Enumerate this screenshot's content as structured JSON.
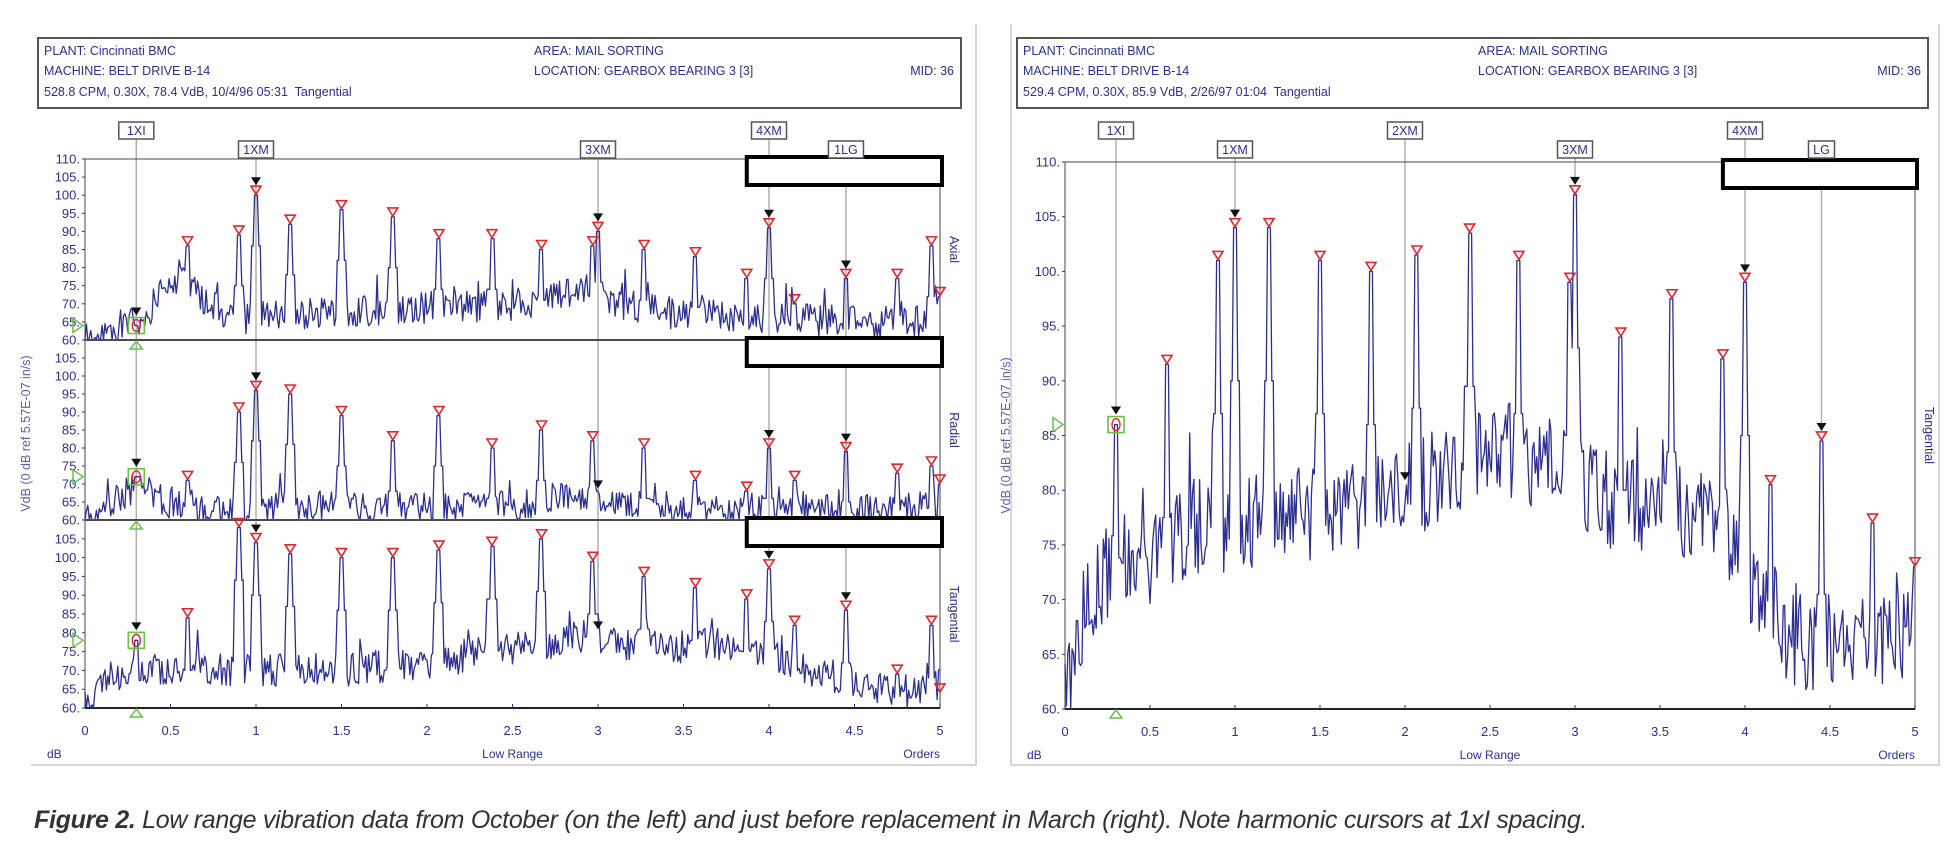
{
  "panels": [
    {
      "header": {
        "plant": "PLANT: Cincinnati BMC",
        "area": "AREA: MAIL SORTING",
        "machine": "MACHINE: BELT DRIVE B-14",
        "location": "LOCATION: GEARBOX BEARING 3 [3]",
        "mid": "MID: 36",
        "reading": "528.8 CPM, 0.30X, 78.4 VdB, 10/4/96 05:31  Tangential"
      }
    },
    {
      "header": {
        "plant": "PLANT: Cincinnati BMC",
        "area": "AREA: MAIL SORTING",
        "machine": "MACHINE: BELT DRIVE B-14",
        "location": "LOCATION: GEARBOX BEARING 3 [3]",
        "mid": "MID: 36",
        "reading": "529.4 CPM, 0.30X, 85.9 VdB, 2/26/97 01:04  Tangential"
      }
    }
  ],
  "caption": {
    "label": "Figure 2.",
    "text": " Low range vibration data from October (on the left) and just before replacement in March (right). Note harmonic cursors at 1xI spacing."
  },
  "colors": {
    "trace": "#2b2f8f",
    "peak_marker": "#e8232a",
    "cursor_marker": "#111111",
    "reference_marker": "#6cc04a",
    "cursor_line": "#b0b0b0"
  },
  "chart_data": [
    {
      "type": "line",
      "title": "",
      "xlabel": "Low Range",
      "ylabel": "VdB (0 dB ref 5.57E-07 in/s)",
      "y_unit": "dB",
      "x_unit": "Orders",
      "xlim": [
        0,
        5
      ],
      "x_ticks": [
        "0",
        "0.5",
        "1",
        "1.5",
        "2",
        "2.5",
        "3",
        "3.5",
        "4",
        "4.5",
        "5"
      ],
      "grid": false,
      "cursors": [
        {
          "label": "1XI",
          "x": 0.3,
          "row": 0
        },
        {
          "label": "1XM",
          "x": 1.0,
          "row": 1
        },
        {
          "label": "3XM",
          "x": 3.0,
          "row": 1
        },
        {
          "label": "4XM",
          "x": 4.0,
          "row": 0
        },
        {
          "label": "1LG",
          "x": 4.45,
          "row": 1
        }
      ],
      "series": [
        {
          "name": "Axial",
          "ylim": [
            60,
            110
          ],
          "y_ticks": [
            "110.",
            "105.",
            "100.",
            "95.",
            "90.",
            "85.",
            "80.",
            "75.",
            "70.",
            "65.",
            "60."
          ],
          "cursor_value": 64,
          "floor": [
            [
              0,
              60
            ],
            [
              0.1,
              60
            ],
            [
              0.2,
              64
            ],
            [
              0.35,
              66
            ],
            [
              0.45,
              74
            ],
            [
              0.55,
              78
            ],
            [
              0.7,
              70
            ],
            [
              0.9,
              66
            ],
            [
              1.2,
              67
            ],
            [
              1.6,
              68
            ],
            [
              2.0,
              69
            ],
            [
              2.4,
              69
            ],
            [
              2.7,
              71
            ],
            [
              2.9,
              75
            ],
            [
              3.1,
              70
            ],
            [
              3.5,
              67
            ],
            [
              4.0,
              66
            ],
            [
              4.5,
              65
            ],
            [
              4.9,
              65
            ],
            [
              5.0,
              68
            ]
          ],
          "peaks": [
            [
              0.6,
              86
            ],
            [
              0.9,
              89
            ],
            [
              1.0,
              100
            ],
            [
              1.2,
              92
            ],
            [
              1.5,
              96
            ],
            [
              1.8,
              94
            ],
            [
              2.07,
              88
            ],
            [
              2.38,
              88
            ],
            [
              2.67,
              85
            ],
            [
              2.97,
              86
            ],
            [
              3.0,
              90
            ],
            [
              3.27,
              85
            ],
            [
              3.57,
              83
            ],
            [
              3.87,
              77
            ],
            [
              4.0,
              91
            ],
            [
              4.15,
              70
            ],
            [
              4.45,
              77
            ],
            [
              4.75,
              77
            ],
            [
              4.95,
              86
            ],
            [
              5.0,
              72
            ]
          ]
        },
        {
          "name": "Radial",
          "ylim": [
            60,
            110
          ],
          "y_ticks": [
            "105.",
            "100.",
            "95.",
            "90.",
            "85.",
            "80.",
            "75.",
            "70.",
            "65.",
            "60."
          ],
          "cursor_value": 72,
          "floor": [
            [
              0,
              60
            ],
            [
              0.1,
              60
            ],
            [
              0.2,
              66
            ],
            [
              0.3,
              70
            ],
            [
              0.5,
              64
            ],
            [
              0.7,
              62
            ],
            [
              0.9,
              63
            ],
            [
              1.2,
              64
            ],
            [
              1.6,
              63
            ],
            [
              2.0,
              64
            ],
            [
              2.5,
              64
            ],
            [
              2.9,
              67
            ],
            [
              3.2,
              64
            ],
            [
              3.6,
              63
            ],
            [
              4.0,
              63
            ],
            [
              4.5,
              63
            ],
            [
              4.9,
              63
            ],
            [
              5.0,
              66
            ]
          ],
          "peaks": [
            [
              0.6,
              71
            ],
            [
              0.9,
              90
            ],
            [
              1.0,
              96
            ],
            [
              1.2,
              95
            ],
            [
              1.5,
              89
            ],
            [
              1.8,
              82
            ],
            [
              2.07,
              89
            ],
            [
              2.38,
              80
            ],
            [
              2.67,
              85
            ],
            [
              2.97,
              82
            ],
            [
              3.27,
              80
            ],
            [
              3.57,
              71
            ],
            [
              3.87,
              68
            ],
            [
              4.0,
              80
            ],
            [
              4.15,
              71
            ],
            [
              4.45,
              79
            ],
            [
              4.75,
              73
            ],
            [
              4.95,
              75
            ],
            [
              5.0,
              70
            ]
          ]
        },
        {
          "name": "Tangential",
          "ylim": [
            60,
            110
          ],
          "y_ticks": [
            "105.",
            "100.",
            "95.",
            "90.",
            "85.",
            "80.",
            "75.",
            "70.",
            "65.",
            "60."
          ],
          "cursor_value": 78,
          "floor": [
            [
              0,
              60
            ],
            [
              0.1,
              68
            ],
            [
              0.3,
              70
            ],
            [
              0.6,
              71
            ],
            [
              1.0,
              70
            ],
            [
              1.5,
              70
            ],
            [
              2.0,
              72
            ],
            [
              2.5,
              76
            ],
            [
              2.9,
              79
            ],
            [
              3.3,
              76
            ],
            [
              3.8,
              77
            ],
            [
              4.1,
              72
            ],
            [
              4.5,
              66
            ],
            [
              4.9,
              64
            ],
            [
              5.0,
              66
            ]
          ],
          "peaks": [
            [
              0.6,
              84
            ],
            [
              0.9,
              108
            ],
            [
              1.0,
              104
            ],
            [
              1.2,
              101
            ],
            [
              1.5,
              100
            ],
            [
              1.8,
              100
            ],
            [
              2.07,
              102
            ],
            [
              2.38,
              103
            ],
            [
              2.67,
              105
            ],
            [
              2.97,
              99
            ],
            [
              3.27,
              95
            ],
            [
              3.57,
              92
            ],
            [
              3.87,
              89
            ],
            [
              4.0,
              97
            ],
            [
              4.15,
              82
            ],
            [
              4.45,
              86
            ],
            [
              4.75,
              69
            ],
            [
              4.95,
              82
            ],
            [
              5.0,
              64
            ]
          ]
        }
      ]
    },
    {
      "type": "line",
      "title": "",
      "xlabel": "Low Range",
      "ylabel": "VdB (0 dB ref 5.57E-07 in/s)",
      "y_unit": "dB",
      "x_unit": "Orders",
      "xlim": [
        0,
        5
      ],
      "x_ticks": [
        "0",
        "0.5",
        "1",
        "1.5",
        "2",
        "2.5",
        "3",
        "3.5",
        "4",
        "4.5",
        "5"
      ],
      "grid": false,
      "cursors": [
        {
          "label": "1XI",
          "x": 0.3,
          "row": 0
        },
        {
          "label": "1XM",
          "x": 1.0,
          "row": 1
        },
        {
          "label": "2XM",
          "x": 2.0,
          "row": 0
        },
        {
          "label": "3XM",
          "x": 3.0,
          "row": 1
        },
        {
          "label": "4XM",
          "x": 4.0,
          "row": 0
        },
        {
          "label": "LG",
          "x": 4.45,
          "row": 1
        }
      ],
      "series": [
        {
          "name": "Tangential",
          "ylim": [
            60,
            110
          ],
          "y_ticks": [
            "110.",
            "105.",
            "100.",
            "95.",
            "90.",
            "85.",
            "80.",
            "75.",
            "70.",
            "65.",
            "60."
          ],
          "cursor_value": 86,
          "floor": [
            [
              0,
              60
            ],
            [
              0.05,
              64
            ],
            [
              0.15,
              71
            ],
            [
              0.3,
              73
            ],
            [
              0.5,
              74
            ],
            [
              0.8,
              77
            ],
            [
              1.0,
              77
            ],
            [
              1.5,
              78
            ],
            [
              2.0,
              80
            ],
            [
              2.3,
              82
            ],
            [
              2.6,
              84
            ],
            [
              2.9,
              82
            ],
            [
              3.2,
              79
            ],
            [
              3.6,
              78
            ],
            [
              3.9,
              76
            ],
            [
              4.1,
              70
            ],
            [
              4.3,
              66
            ],
            [
              4.6,
              66
            ],
            [
              4.9,
              66
            ],
            [
              5.0,
              70
            ]
          ],
          "peaks": [
            [
              0.6,
              91.5
            ],
            [
              0.9,
              101
            ],
            [
              1.0,
              104
            ],
            [
              1.2,
              104
            ],
            [
              1.5,
              101
            ],
            [
              1.8,
              100
            ],
            [
              2.07,
              101.5
            ],
            [
              2.38,
              103.5
            ],
            [
              2.67,
              101
            ],
            [
              2.97,
              99
            ],
            [
              3.0,
              107
            ],
            [
              3.27,
              94
            ],
            [
              3.57,
              97.5
            ],
            [
              3.87,
              92
            ],
            [
              4.0,
              99
            ],
            [
              4.15,
              80.5
            ],
            [
              4.45,
              84.5
            ],
            [
              4.75,
              77
            ],
            [
              5.0,
              73
            ]
          ]
        }
      ]
    }
  ]
}
